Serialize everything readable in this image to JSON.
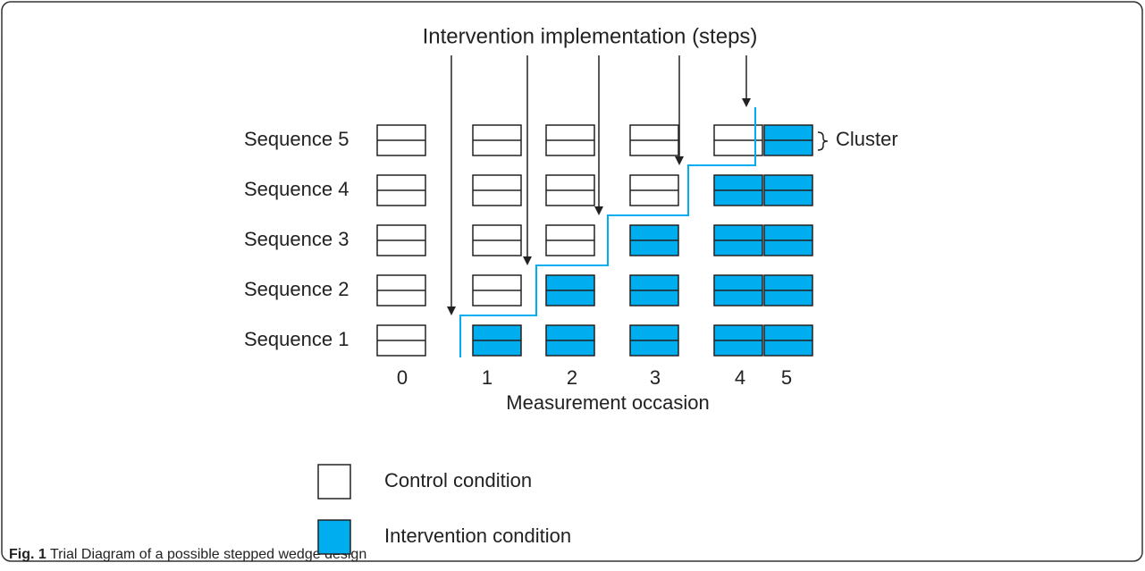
{
  "title": "Intervention implementation (steps)",
  "sequences": [
    "Sequence 1",
    "Sequence 2",
    "Sequence 3",
    "Sequence 4",
    "Sequence 5"
  ],
  "occasions": [
    "0",
    "1",
    "2",
    "3",
    "4",
    "5"
  ],
  "x_label": "Measurement occasion",
  "annotation": "Cluster",
  "legend": [
    {
      "label": "Control condition",
      "color": "#ffffff"
    },
    {
      "label": "Intervention condition",
      "color": "#00aeef"
    }
  ],
  "caption": {
    "number": "Fig. 1",
    "text": "Trial Diagram of a possible stepped wedge design"
  }
}
